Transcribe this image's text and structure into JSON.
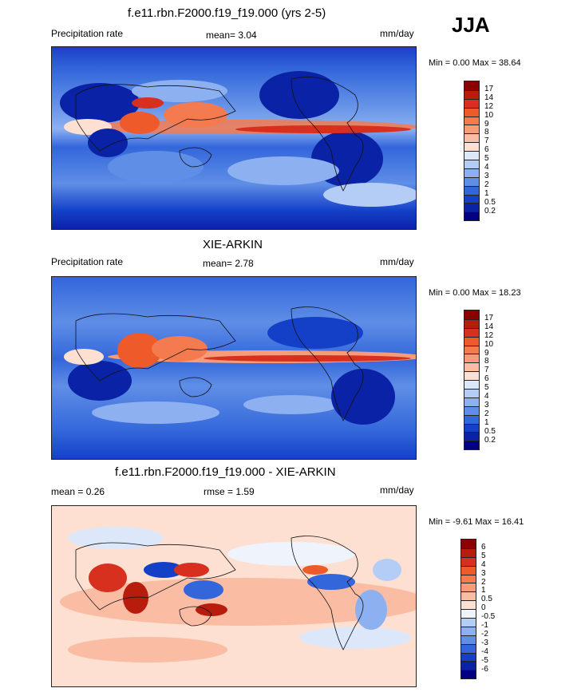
{
  "season": "JJA",
  "panels": [
    {
      "title": "f.e11.rbn.F2000.f19_f19.000 (yrs 2-5)",
      "left_label": "Precipitation rate",
      "mid_label": "mean=   3.04",
      "units": "mm/day",
      "minmax": "Min =   0.00 Max =  38.64"
    },
    {
      "title": "XIE-ARKIN",
      "left_label": "Precipitation rate",
      "mid_label": "mean=   2.78",
      "units": "mm/day",
      "minmax": "Min =   0.00 Max =  18.23"
    },
    {
      "title": "f.e11.rbn.F2000.f19_f19.000 - XIE-ARKIN",
      "left_label": "mean =   0.26",
      "mid_label": "rmse =   1.59",
      "units": "mm/day",
      "minmax": "Min =  -9.61 Max =  16.41"
    }
  ],
  "chart_data": [
    {
      "type": "heatmap",
      "title": "f.e11.rbn.F2000.f19_f19.000 (yrs 2-5)",
      "variable": "Precipitation rate",
      "units": "mm/day",
      "mean": 3.04,
      "min": 0.0,
      "max": 38.64,
      "colorbar_levels": [
        "17",
        "14",
        "12",
        "10",
        "9",
        "8",
        "7",
        "6",
        "5",
        "4",
        "3",
        "2",
        "1",
        "0.5",
        "0.2"
      ],
      "colorbar_colors": [
        "#8b0000",
        "#b71c0c",
        "#d7301f",
        "#ef5a2a",
        "#f47a4f",
        "#f79b78",
        "#fabda4",
        "#fde0d2",
        "#dce8fa",
        "#b4cdf6",
        "#8cb0f0",
        "#5f8ee6",
        "#3366db",
        "#1440c8",
        "#0a22a6",
        "#000080"
      ]
    },
    {
      "type": "heatmap",
      "title": "XIE-ARKIN",
      "variable": "Precipitation rate",
      "units": "mm/day",
      "mean": 2.78,
      "min": 0.0,
      "max": 18.23,
      "colorbar_levels": [
        "17",
        "14",
        "12",
        "10",
        "9",
        "8",
        "7",
        "6",
        "5",
        "4",
        "3",
        "2",
        "1",
        "0.5",
        "0.2"
      ],
      "colorbar_colors": [
        "#8b0000",
        "#b71c0c",
        "#d7301f",
        "#ef5a2a",
        "#f47a4f",
        "#f79b78",
        "#fabda4",
        "#fde0d2",
        "#dce8fa",
        "#b4cdf6",
        "#8cb0f0",
        "#5f8ee6",
        "#3366db",
        "#1440c8",
        "#0a22a6",
        "#000080"
      ]
    },
    {
      "type": "heatmap",
      "title": "f.e11.rbn.F2000.f19_f19.000 - XIE-ARKIN",
      "units": "mm/day",
      "mean": 0.26,
      "rmse": 1.59,
      "min": -9.61,
      "max": 16.41,
      "colorbar_levels": [
        "6",
        "5",
        "4",
        "3",
        "2",
        "1",
        "0.5",
        "0",
        "-0.5",
        "-1",
        "-2",
        "-3",
        "-4",
        "-5",
        "-6"
      ],
      "colorbar_colors": [
        "#8b0000",
        "#b71c0c",
        "#d7301f",
        "#ef5a2a",
        "#f47a4f",
        "#f79b78",
        "#fabda4",
        "#fde0d2",
        "#eef3fc",
        "#b4cdf6",
        "#8cb0f0",
        "#5f8ee6",
        "#3366db",
        "#1440c8",
        "#0a22a6",
        "#000080"
      ]
    }
  ]
}
